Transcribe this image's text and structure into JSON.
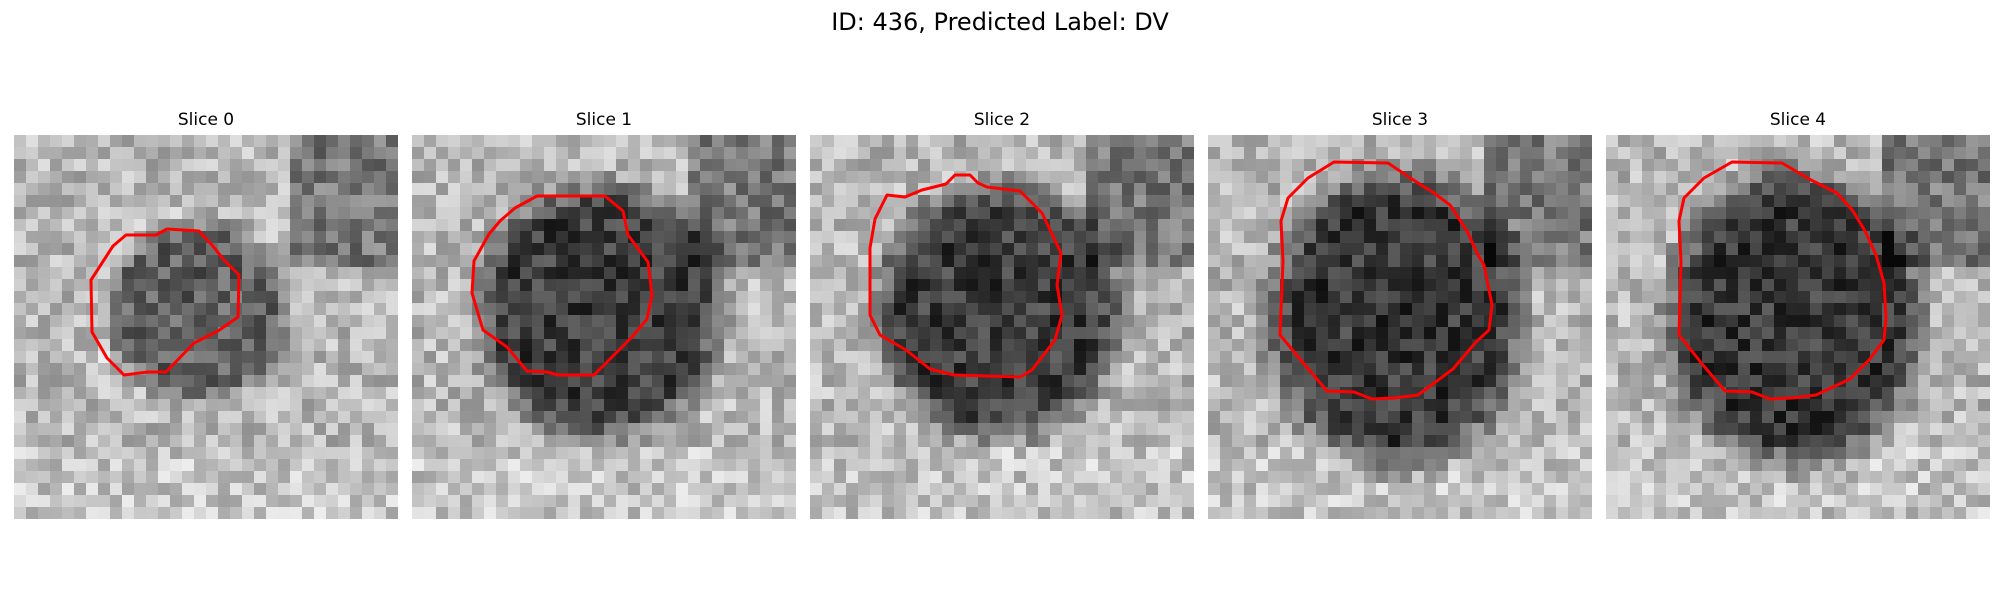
{
  "figure": {
    "title": "ID: 436, Predicted Label: DV"
  },
  "panels": [
    {
      "title": "Slice 0",
      "contour_color": "#ff0000"
    },
    {
      "title": "Slice 1",
      "contour_color": "#ff0000"
    },
    {
      "title": "Slice 2",
      "contour_color": "#ff0000"
    },
    {
      "title": "Slice 3",
      "contour_color": "#ff0000"
    },
    {
      "title": "Slice 4",
      "contour_color": "#ff0000"
    }
  ]
}
